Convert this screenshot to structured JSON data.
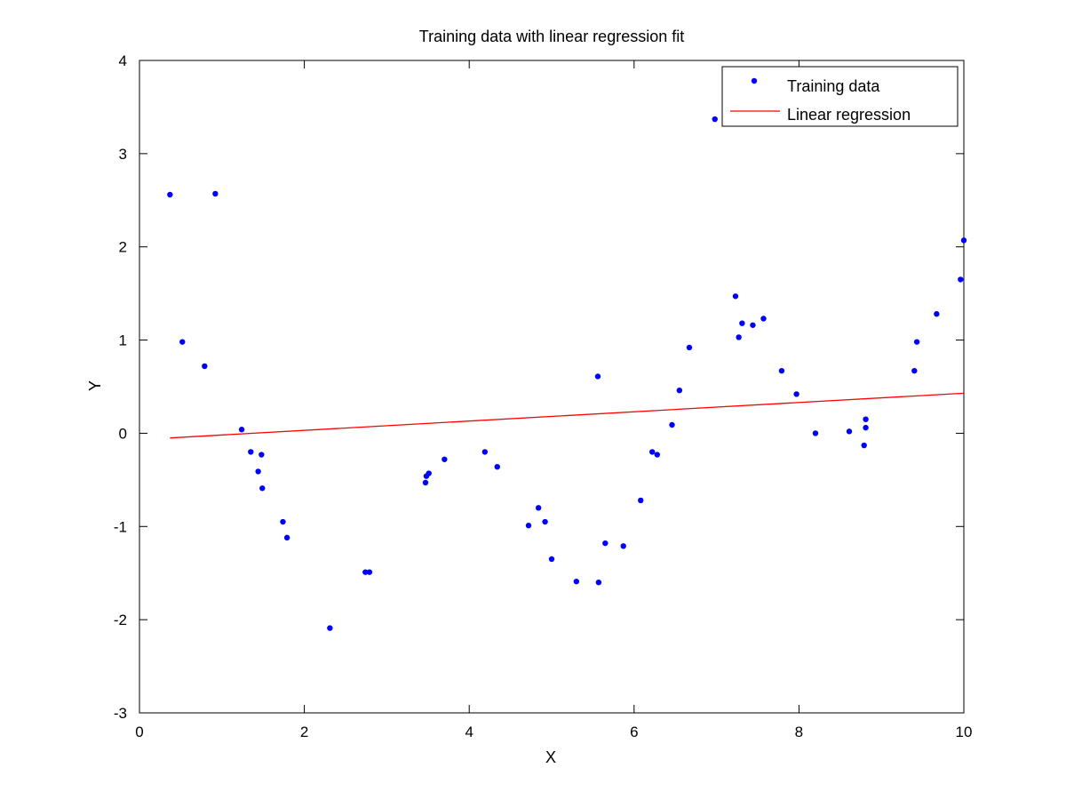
{
  "chart_data": {
    "type": "scatter",
    "title": "Training data with linear regression fit",
    "xlabel": "X",
    "ylabel": "Y",
    "xlim": [
      0,
      10
    ],
    "ylim": [
      -3,
      4
    ],
    "xticks": [
      0,
      2,
      4,
      6,
      8,
      10
    ],
    "yticks": [
      -3,
      -2,
      -1,
      0,
      1,
      2,
      3,
      4
    ],
    "xtick_labels": [
      "0",
      "2",
      "4",
      "6",
      "8",
      "10"
    ],
    "ytick_labels": [
      "-3",
      "-2",
      "-1",
      "0",
      "1",
      "2",
      "3",
      "4"
    ],
    "grid": false,
    "legend_position": "top-right",
    "series": [
      {
        "name": "Training data",
        "kind": "points",
        "color": "#0000ff",
        "points": [
          [
            0.37,
            2.56
          ],
          [
            0.52,
            0.98
          ],
          [
            0.79,
            0.72
          ],
          [
            0.92,
            2.57
          ],
          [
            1.24,
            0.04
          ],
          [
            1.35,
            -0.2
          ],
          [
            1.44,
            -0.41
          ],
          [
            1.48,
            -0.23
          ],
          [
            1.49,
            -0.59
          ],
          [
            1.74,
            -0.95
          ],
          [
            1.79,
            -1.12
          ],
          [
            2.31,
            -2.09
          ],
          [
            2.74,
            -1.49
          ],
          [
            2.79,
            -1.49
          ],
          [
            3.47,
            -0.53
          ],
          [
            3.48,
            -0.46
          ],
          [
            3.51,
            -0.43
          ],
          [
            3.7,
            -0.28
          ],
          [
            4.19,
            -0.2
          ],
          [
            4.34,
            -0.36
          ],
          [
            4.72,
            -0.99
          ],
          [
            4.84,
            -0.8
          ],
          [
            4.92,
            -0.95
          ],
          [
            5.0,
            -1.35
          ],
          [
            5.3,
            -1.59
          ],
          [
            5.56,
            0.61
          ],
          [
            5.57,
            -1.6
          ],
          [
            5.65,
            -1.18
          ],
          [
            5.87,
            -1.21
          ],
          [
            6.08,
            -0.72
          ],
          [
            6.22,
            -0.2
          ],
          [
            6.28,
            -0.23
          ],
          [
            6.46,
            0.09
          ],
          [
            6.55,
            0.46
          ],
          [
            6.67,
            0.92
          ],
          [
            6.98,
            3.37
          ],
          [
            7.23,
            1.47
          ],
          [
            7.27,
            1.03
          ],
          [
            7.31,
            1.18
          ],
          [
            7.44,
            1.16
          ],
          [
            7.57,
            1.23
          ],
          [
            7.79,
            0.67
          ],
          [
            7.97,
            0.42
          ],
          [
            8.2,
            0.0
          ],
          [
            8.61,
            0.02
          ],
          [
            8.79,
            -0.13
          ],
          [
            8.81,
            0.06
          ],
          [
            8.81,
            0.15
          ],
          [
            9.4,
            0.67
          ],
          [
            9.43,
            0.98
          ],
          [
            9.67,
            1.28
          ],
          [
            9.96,
            1.65
          ],
          [
            10.0,
            2.07
          ]
        ]
      },
      {
        "name": "Linear regression",
        "kind": "line",
        "color": "#ff0000",
        "points": [
          [
            0.37,
            -0.05
          ],
          [
            10.0,
            0.43
          ]
        ]
      }
    ]
  }
}
